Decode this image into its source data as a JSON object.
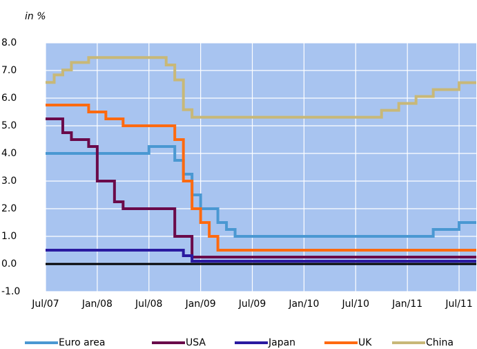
{
  "chart_data": {
    "type": "line",
    "subtitle": "in %",
    "x": [
      "2007-07",
      "2007-08",
      "2007-09",
      "2007-10",
      "2007-11",
      "2007-12",
      "2008-01",
      "2008-02",
      "2008-03",
      "2008-04",
      "2008-05",
      "2008-06",
      "2008-07",
      "2008-08",
      "2008-09",
      "2008-10",
      "2008-11",
      "2008-12",
      "2009-01",
      "2009-02",
      "2009-03",
      "2009-04",
      "2009-05",
      "2009-06",
      "2009-07",
      "2009-08",
      "2009-09",
      "2009-10",
      "2009-11",
      "2009-12",
      "2010-01",
      "2010-02",
      "2010-03",
      "2010-04",
      "2010-05",
      "2010-06",
      "2010-07",
      "2010-08",
      "2010-09",
      "2010-10",
      "2010-11",
      "2010-12",
      "2011-01",
      "2011-02",
      "2011-03",
      "2011-04",
      "2011-05",
      "2011-06",
      "2011-07",
      "2011-08",
      "2011-09"
    ],
    "series": [
      {
        "name": "Euro area",
        "color": "#4a98d2",
        "values": [
          4.0,
          4.0,
          4.0,
          4.0,
          4.0,
          4.0,
          4.0,
          4.0,
          4.0,
          4.0,
          4.0,
          4.0,
          4.25,
          4.25,
          4.25,
          3.75,
          3.25,
          2.5,
          2.0,
          2.0,
          1.5,
          1.25,
          1.0,
          1.0,
          1.0,
          1.0,
          1.0,
          1.0,
          1.0,
          1.0,
          1.0,
          1.0,
          1.0,
          1.0,
          1.0,
          1.0,
          1.0,
          1.0,
          1.0,
          1.0,
          1.0,
          1.0,
          1.0,
          1.0,
          1.0,
          1.25,
          1.25,
          1.25,
          1.5,
          1.5,
          1.5
        ]
      },
      {
        "name": "USA",
        "color": "#6a0a4a",
        "values": [
          5.25,
          5.25,
          4.75,
          4.5,
          4.5,
          4.25,
          3.0,
          3.0,
          2.25,
          2.0,
          2.0,
          2.0,
          2.0,
          2.0,
          2.0,
          1.0,
          1.0,
          0.25,
          0.25,
          0.25,
          0.25,
          0.25,
          0.25,
          0.25,
          0.25,
          0.25,
          0.25,
          0.25,
          0.25,
          0.25,
          0.25,
          0.25,
          0.25,
          0.25,
          0.25,
          0.25,
          0.25,
          0.25,
          0.25,
          0.25,
          0.25,
          0.25,
          0.25,
          0.25,
          0.25,
          0.25,
          0.25,
          0.25,
          0.25,
          0.25,
          0.25
        ]
      },
      {
        "name": "Japan",
        "color": "#2a1aa0",
        "values": [
          0.5,
          0.5,
          0.5,
          0.5,
          0.5,
          0.5,
          0.5,
          0.5,
          0.5,
          0.5,
          0.5,
          0.5,
          0.5,
          0.5,
          0.5,
          0.5,
          0.3,
          0.1,
          0.1,
          0.1,
          0.1,
          0.1,
          0.1,
          0.1,
          0.1,
          0.1,
          0.1,
          0.1,
          0.1,
          0.1,
          0.1,
          0.1,
          0.1,
          0.1,
          0.1,
          0.1,
          0.1,
          0.1,
          0.1,
          0.1,
          0.1,
          0.1,
          0.1,
          0.1,
          0.1,
          0.1,
          0.1,
          0.1,
          0.1,
          0.1,
          0.1
        ]
      },
      {
        "name": "UK",
        "color": "#ff6a10",
        "values": [
          5.75,
          5.75,
          5.75,
          5.75,
          5.75,
          5.5,
          5.5,
          5.25,
          5.25,
          5.0,
          5.0,
          5.0,
          5.0,
          5.0,
          5.0,
          4.5,
          3.0,
          2.0,
          1.5,
          1.0,
          0.5,
          0.5,
          0.5,
          0.5,
          0.5,
          0.5,
          0.5,
          0.5,
          0.5,
          0.5,
          0.5,
          0.5,
          0.5,
          0.5,
          0.5,
          0.5,
          0.5,
          0.5,
          0.5,
          0.5,
          0.5,
          0.5,
          0.5,
          0.5,
          0.5,
          0.5,
          0.5,
          0.5,
          0.5,
          0.5,
          0.5
        ]
      },
      {
        "name": "China",
        "color": "#c8b878",
        "values": [
          6.57,
          6.84,
          7.02,
          7.29,
          7.29,
          7.47,
          7.47,
          7.47,
          7.47,
          7.47,
          7.47,
          7.47,
          7.47,
          7.47,
          7.2,
          6.66,
          5.58,
          5.31,
          5.31,
          5.31,
          5.31,
          5.31,
          5.31,
          5.31,
          5.31,
          5.31,
          5.31,
          5.31,
          5.31,
          5.31,
          5.31,
          5.31,
          5.31,
          5.31,
          5.31,
          5.31,
          5.31,
          5.31,
          5.31,
          5.56,
          5.56,
          5.81,
          5.81,
          6.06,
          6.06,
          6.31,
          6.31,
          6.31,
          6.56,
          6.56,
          6.56
        ]
      }
    ],
    "xlim": [
      "2007-07",
      "2011-09"
    ],
    "xticks": [
      {
        "value": "2007-07",
        "label": "Jul/07"
      },
      {
        "value": "2008-01",
        "label": "Jan/08"
      },
      {
        "value": "2008-07",
        "label": "Jul/08"
      },
      {
        "value": "2009-01",
        "label": "Jan/09"
      },
      {
        "value": "2009-07",
        "label": "Jul/09"
      },
      {
        "value": "2010-01",
        "label": "Jan/10"
      },
      {
        "value": "2010-07",
        "label": "Jul/10"
      },
      {
        "value": "2011-01",
        "label": "Jan/11"
      },
      {
        "value": "2011-07",
        "label": "Jul/11"
      }
    ],
    "ylim": [
      -1,
      8
    ],
    "yticks": [
      {
        "value": -1,
        "label": "-1.0"
      },
      {
        "value": 0,
        "label": "0.0"
      },
      {
        "value": 1,
        "label": "1.0"
      },
      {
        "value": 2,
        "label": "2.0"
      },
      {
        "value": 3,
        "label": "3.0"
      },
      {
        "value": 4,
        "label": "4.0"
      },
      {
        "value": 5,
        "label": "5.0"
      },
      {
        "value": 6,
        "label": "6.0"
      },
      {
        "value": 7,
        "label": "7.0"
      },
      {
        "value": 8,
        "label": "8.0"
      }
    ],
    "grid": true,
    "step": true,
    "background": "#a8c4f0",
    "legend": "bottom"
  }
}
